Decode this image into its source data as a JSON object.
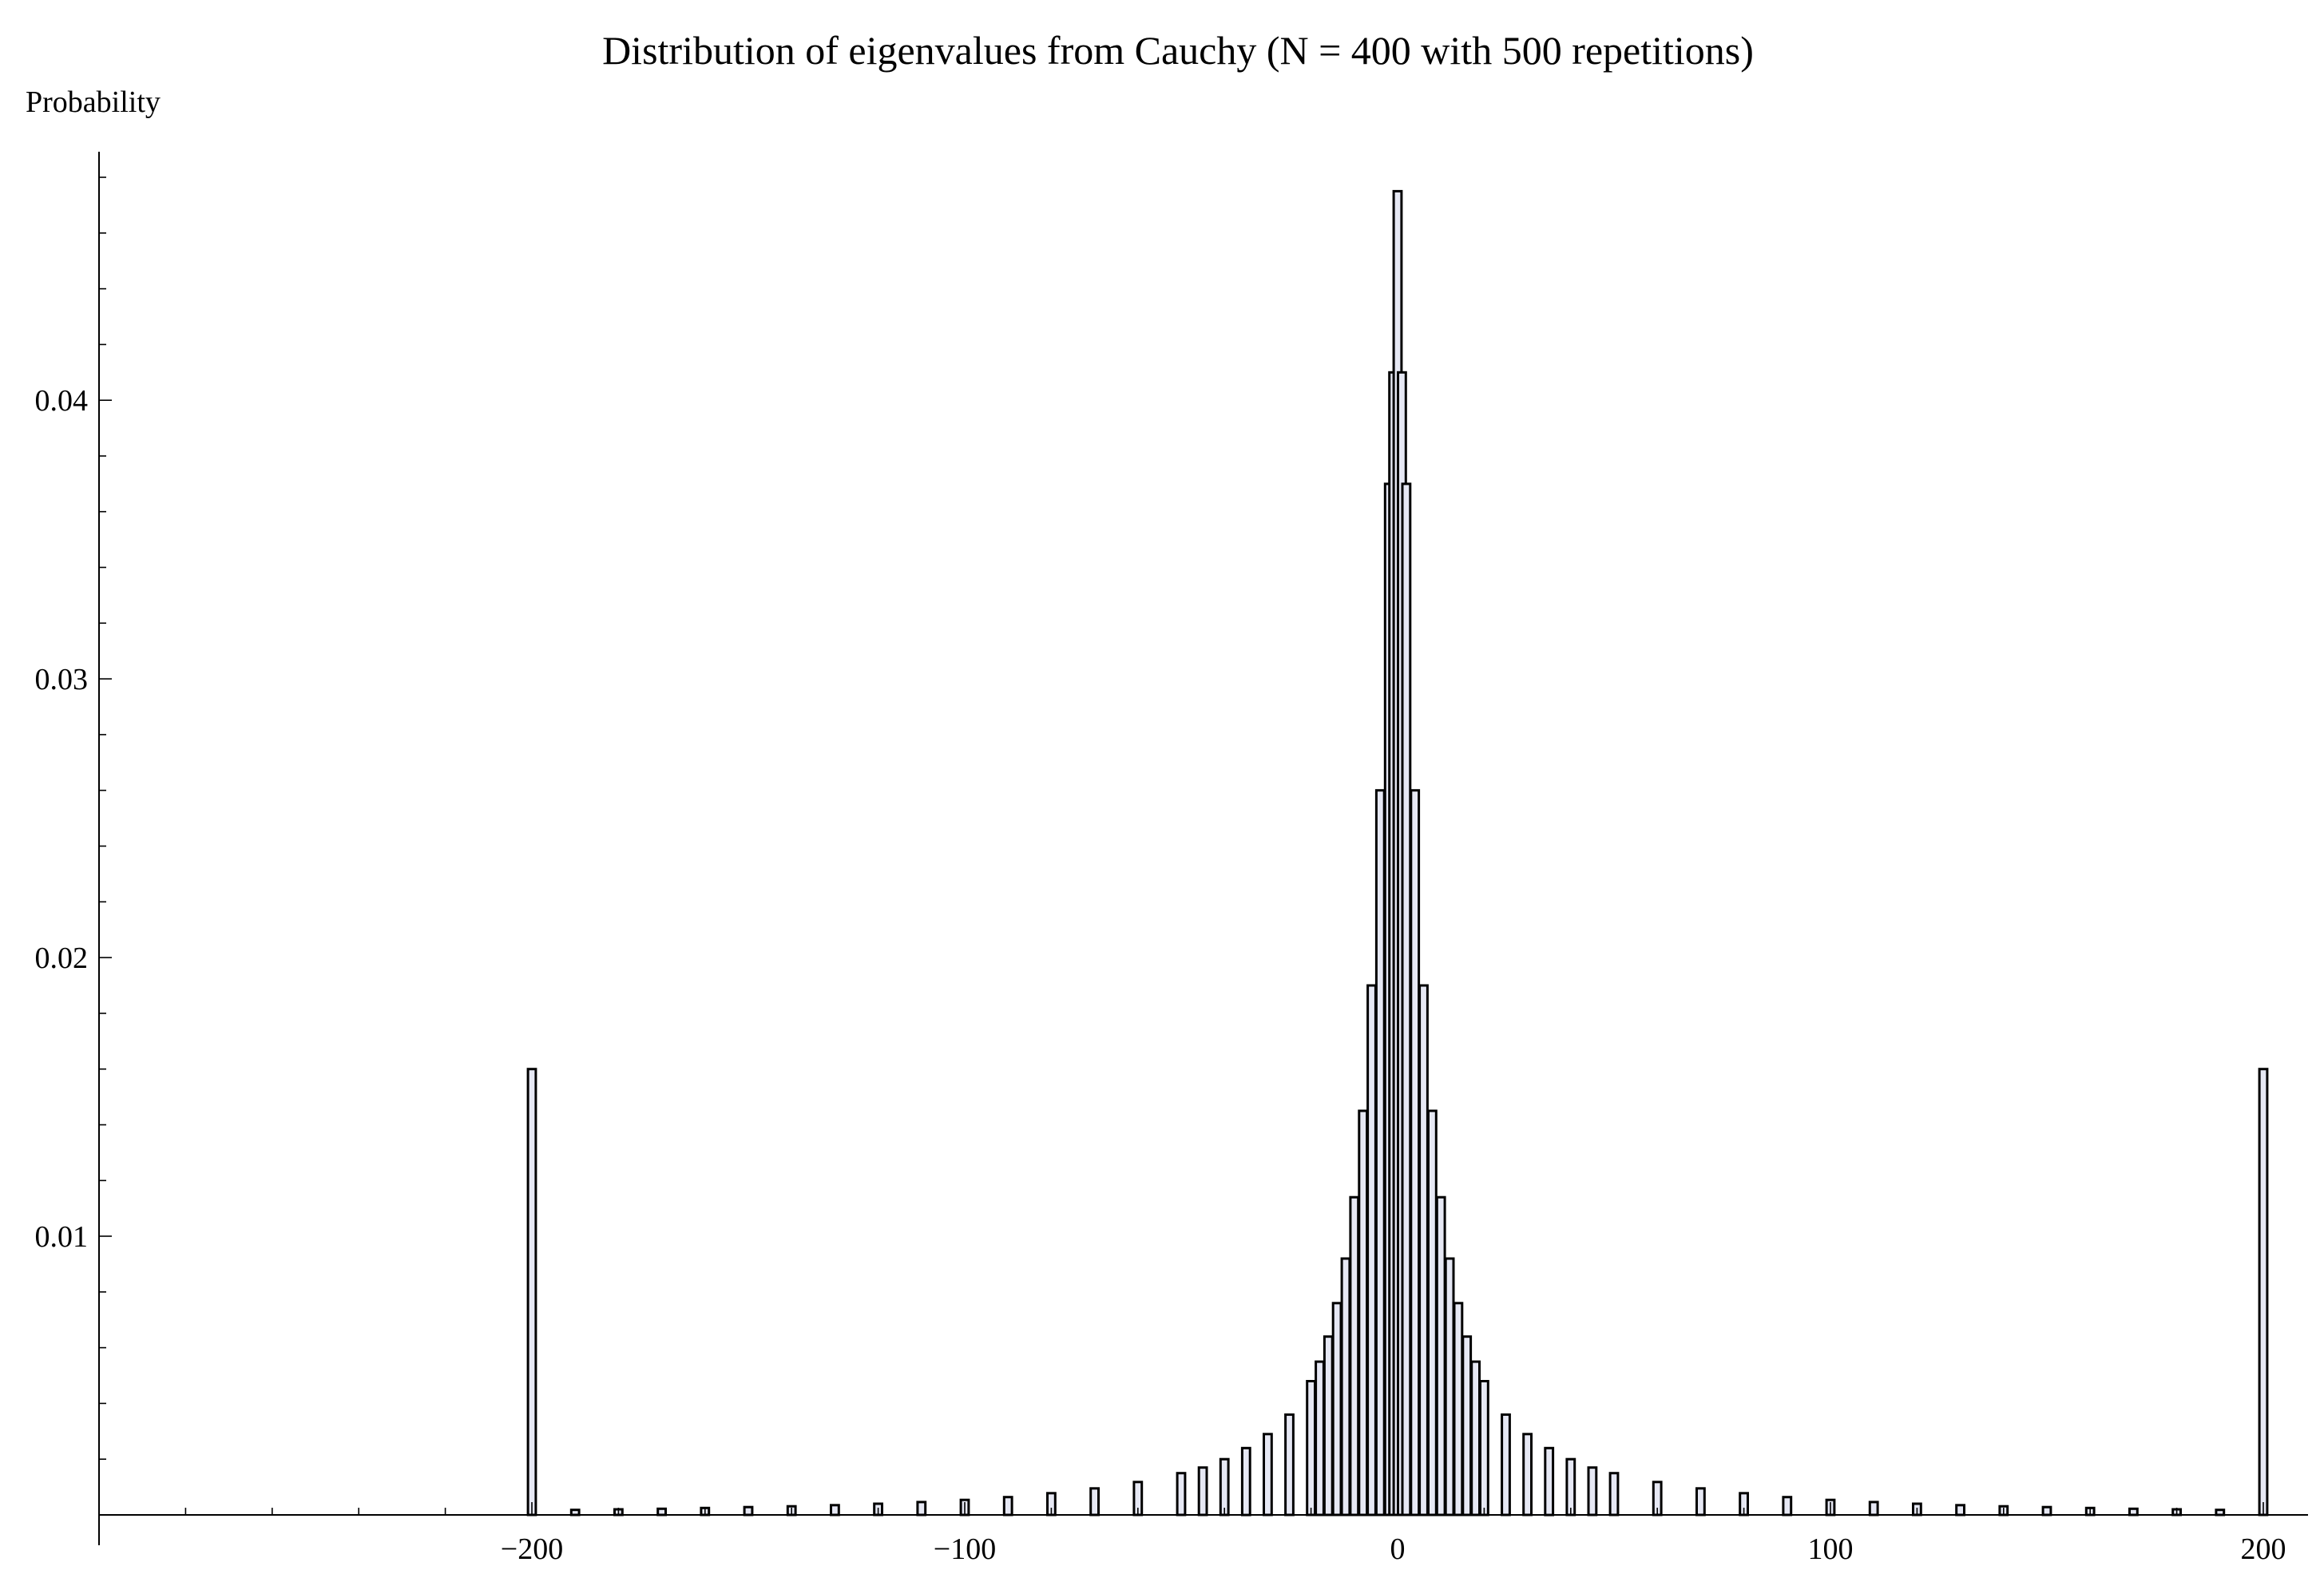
{
  "chart_data": {
    "type": "bar",
    "title": "Distribution of eigenvalues from Cauchy (N = 400 with 500 repetitions)",
    "ylabel": "Probability",
    "xlabel": "",
    "xlim": [
      -300,
      210
    ],
    "ylim": [
      0,
      0.048
    ],
    "bin_width": 1.8,
    "x_ticks": [
      -200,
      -100,
      0,
      100,
      200
    ],
    "x_tick_labels": [
      "−200",
      "−100",
      "0",
      "100",
      "200"
    ],
    "y_ticks": [
      0.01,
      0.02,
      0.03,
      0.04
    ],
    "y_tick_labels": [
      "0.01",
      "0.02",
      "0.03",
      "0.04"
    ],
    "grid": false,
    "legend": "none",
    "colors": {
      "bar_fill": "#e6e8f4",
      "bar_edge": "#000000"
    },
    "bars": [
      {
        "x": -200,
        "value": 0.016
      },
      {
        "x": -190,
        "value": 0.00018
      },
      {
        "x": -180,
        "value": 0.0002
      },
      {
        "x": -170,
        "value": 0.00022
      },
      {
        "x": -160,
        "value": 0.00025
      },
      {
        "x": -150,
        "value": 0.00028
      },
      {
        "x": -140,
        "value": 0.00031
      },
      {
        "x": -130,
        "value": 0.00035
      },
      {
        "x": -120,
        "value": 0.0004
      },
      {
        "x": -110,
        "value": 0.00046
      },
      {
        "x": -100,
        "value": 0.00054
      },
      {
        "x": -90,
        "value": 0.00064
      },
      {
        "x": -80,
        "value": 0.00078
      },
      {
        "x": -70,
        "value": 0.00095
      },
      {
        "x": -60,
        "value": 0.00118
      },
      {
        "x": -50,
        "value": 0.0015
      },
      {
        "x": -45,
        "value": 0.0017
      },
      {
        "x": -40,
        "value": 0.002
      },
      {
        "x": -35,
        "value": 0.0024
      },
      {
        "x": -30,
        "value": 0.0029
      },
      {
        "x": -25,
        "value": 0.0036
      },
      {
        "x": -20,
        "value": 0.0048
      },
      {
        "x": -18,
        "value": 0.0055
      },
      {
        "x": -16,
        "value": 0.0064
      },
      {
        "x": -14,
        "value": 0.0076
      },
      {
        "x": -12,
        "value": 0.0092
      },
      {
        "x": -10,
        "value": 0.0114
      },
      {
        "x": -8,
        "value": 0.0145
      },
      {
        "x": -6,
        "value": 0.019
      },
      {
        "x": -4,
        "value": 0.026
      },
      {
        "x": -2,
        "value": 0.037
      },
      {
        "x": -1,
        "value": 0.041
      },
      {
        "x": 0,
        "value": 0.0475
      },
      {
        "x": 1,
        "value": 0.041
      },
      {
        "x": 2,
        "value": 0.037
      },
      {
        "x": 4,
        "value": 0.026
      },
      {
        "x": 6,
        "value": 0.019
      },
      {
        "x": 8,
        "value": 0.0145
      },
      {
        "x": 10,
        "value": 0.0114
      },
      {
        "x": 12,
        "value": 0.0092
      },
      {
        "x": 14,
        "value": 0.0076
      },
      {
        "x": 16,
        "value": 0.0064
      },
      {
        "x": 18,
        "value": 0.0055
      },
      {
        "x": 20,
        "value": 0.0048
      },
      {
        "x": 25,
        "value": 0.0036
      },
      {
        "x": 30,
        "value": 0.0029
      },
      {
        "x": 35,
        "value": 0.0024
      },
      {
        "x": 40,
        "value": 0.002
      },
      {
        "x": 45,
        "value": 0.0017
      },
      {
        "x": 50,
        "value": 0.0015
      },
      {
        "x": 60,
        "value": 0.00118
      },
      {
        "x": 70,
        "value": 0.00095
      },
      {
        "x": 80,
        "value": 0.00078
      },
      {
        "x": 90,
        "value": 0.00064
      },
      {
        "x": 100,
        "value": 0.00054
      },
      {
        "x": 110,
        "value": 0.00046
      },
      {
        "x": 120,
        "value": 0.0004
      },
      {
        "x": 130,
        "value": 0.00035
      },
      {
        "x": 140,
        "value": 0.00031
      },
      {
        "x": 150,
        "value": 0.00028
      },
      {
        "x": 160,
        "value": 0.00025
      },
      {
        "x": 170,
        "value": 0.00022
      },
      {
        "x": 180,
        "value": 0.0002
      },
      {
        "x": 190,
        "value": 0.00018
      },
      {
        "x": 200,
        "value": 0.016
      }
    ]
  }
}
